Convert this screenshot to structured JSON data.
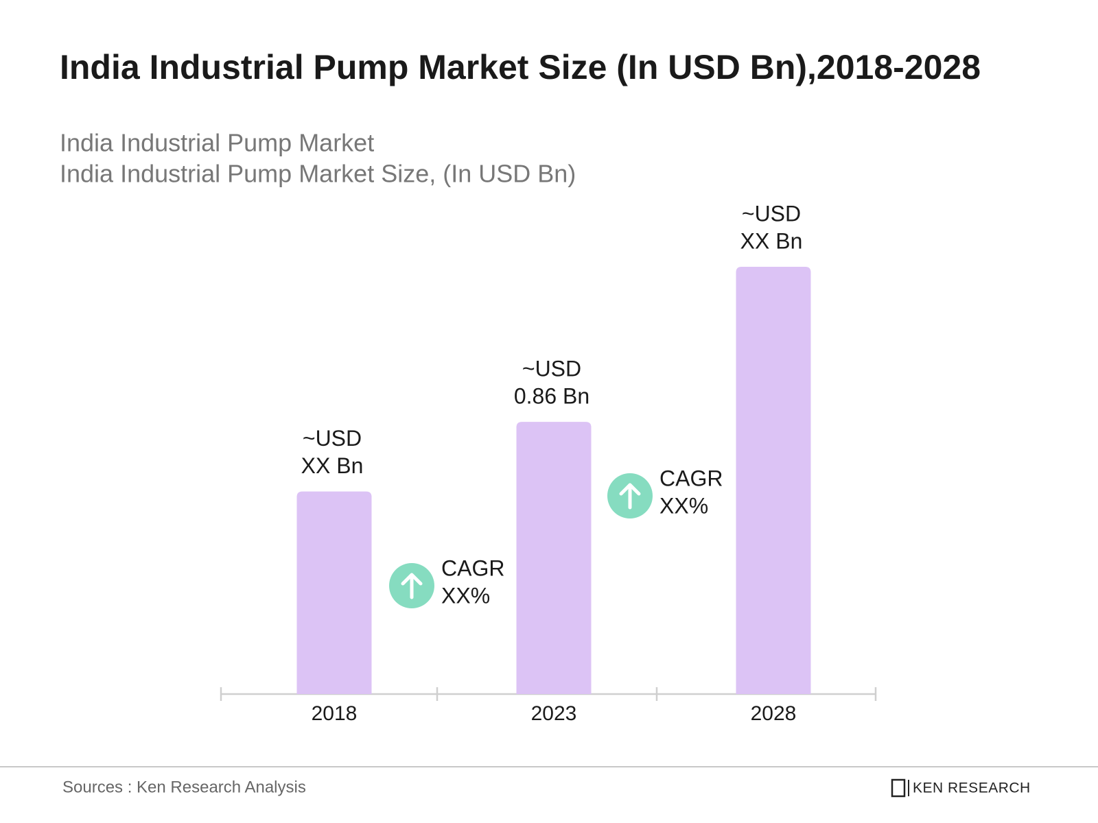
{
  "chart_data": {
    "type": "bar",
    "title": "India Industrial Pump Market Size (In USD Bn),2018-2028",
    "subtitle_lines": [
      "India Industrial Pump Market",
      "India Industrial Pump Market Size, (In USD Bn)"
    ],
    "categories": [
      "2018",
      "2023",
      "2028"
    ],
    "values": [
      0.64,
      0.86,
      1.35
    ],
    "value_labels": [
      [
        "~USD",
        "XX Bn"
      ],
      [
        "~USD",
        "0.86 Bn"
      ],
      [
        "~USD",
        "XX Bn"
      ]
    ],
    "color": "#dcc3f5",
    "annotations": [
      [
        "CAGR",
        "XX%"
      ],
      [
        "CAGR",
        "XX%"
      ]
    ],
    "annotation_color": "#86dcc0",
    "source": "Sources : Ken Research Analysis",
    "logo": "KEN RESEARCH"
  }
}
